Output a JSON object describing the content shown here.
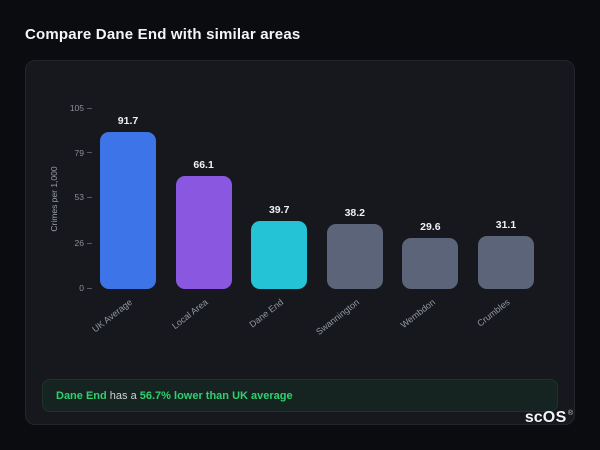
{
  "page": {
    "title": "Compare Dane End with similar areas"
  },
  "chart_data": {
    "type": "bar",
    "categories": [
      "UK Average",
      "Local Area",
      "Dane End",
      "Swannington",
      "Wembdon",
      "Crumbles"
    ],
    "values": [
      91.7,
      66.1,
      39.7,
      38.2,
      29.6,
      31.1
    ],
    "colors": [
      "#3d74e7",
      "#8a58e0",
      "#25c3d6",
      "#5b6478",
      "#5b6478",
      "#5b6478"
    ],
    "title": "",
    "xlabel": "",
    "ylabel": "Crimes per 1,000",
    "yticks": [
      105,
      79,
      53,
      26,
      0
    ],
    "ylim": [
      0,
      105
    ],
    "grid": false,
    "legend": false
  },
  "note": {
    "prefix": "Dane End",
    "middle": " has a ",
    "highlight": "56.7% lower than UK average"
  },
  "logo": {
    "sc": "sc",
    "os": "OS",
    "reg": "®"
  }
}
